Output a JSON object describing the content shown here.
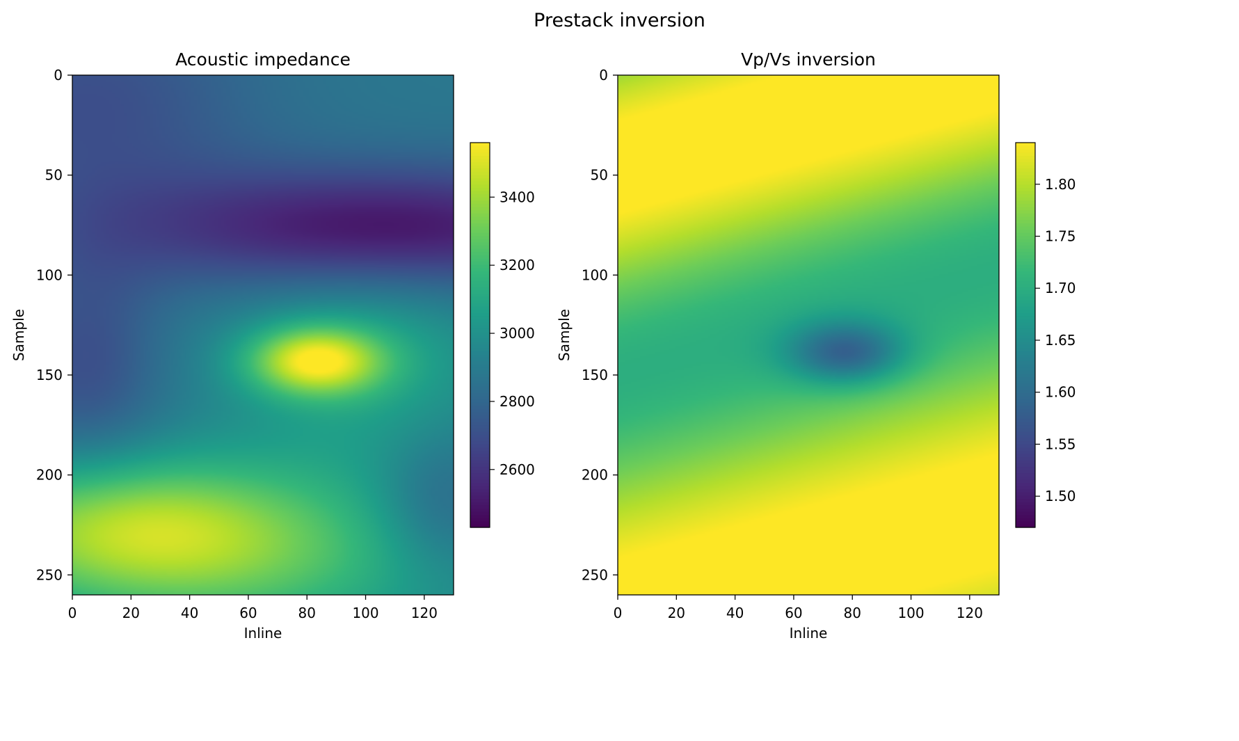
{
  "figure": {
    "title": "Prestack inversion"
  },
  "chart_data": [
    {
      "type": "heatmap",
      "title": "Acoustic impedance",
      "xlabel": "Inline",
      "ylabel": "Sample",
      "xlim": [
        0,
        130
      ],
      "ylim": [
        260,
        0
      ],
      "x_ticks": [
        0,
        20,
        40,
        60,
        80,
        100,
        120
      ],
      "y_ticks": [
        0,
        50,
        100,
        150,
        200,
        250
      ],
      "colormap": "viridis",
      "colorbar": {
        "range": [
          2430,
          3560
        ],
        "ticks": [
          2600,
          2800,
          3000,
          3200,
          3400
        ]
      },
      "field": {
        "base": 2880,
        "features": [
          {
            "kind": "gaussian",
            "x": 105,
            "y": 77,
            "sx": 60,
            "sy": 22,
            "amp": -430
          },
          {
            "kind": "gaussian",
            "x": 5,
            "y": 15,
            "sx": 40,
            "sy": 40,
            "amp": -180
          },
          {
            "kind": "gaussian",
            "x": 5,
            "y": 145,
            "sx": 18,
            "sy": 40,
            "amp": -180
          },
          {
            "kind": "gaussian",
            "x": 83,
            "y": 143,
            "sx": 16,
            "sy": 12,
            "amp": 560
          },
          {
            "kind": "gaussian",
            "x": 100,
            "y": 145,
            "sx": 35,
            "sy": 45,
            "amp": 200
          },
          {
            "kind": "gaussian",
            "x": 20,
            "y": 225,
            "sx": 45,
            "sy": 25,
            "amp": 460
          },
          {
            "kind": "gaussian",
            "x": 60,
            "y": 250,
            "sx": 60,
            "sy": 30,
            "amp": 250
          },
          {
            "kind": "gaussian",
            "x": 125,
            "y": 215,
            "sx": 15,
            "sy": 25,
            "amp": -150
          }
        ]
      },
      "value_range": [
        2430,
        3560
      ]
    },
    {
      "type": "heatmap",
      "title": "Vp/Vs inversion",
      "xlabel": "Inline",
      "ylabel": "Sample",
      "xlim": [
        0,
        130
      ],
      "ylim": [
        260,
        0
      ],
      "x_ticks": [
        0,
        20,
        40,
        60,
        80,
        100,
        120
      ],
      "y_ticks": [
        0,
        50,
        100,
        150,
        200,
        250
      ],
      "colormap": "viridis",
      "colorbar": {
        "range": [
          1.47,
          1.84
        ],
        "ticks": [
          1.5,
          1.55,
          1.6,
          1.65,
          1.7,
          1.75,
          1.8
        ]
      },
      "field": {
        "base": 1.6,
        "features": [
          {
            "kind": "band",
            "slope": -0.4,
            "center": 45,
            "width": 55,
            "amp": 0.26
          },
          {
            "kind": "band",
            "slope": -0.4,
            "center": 270,
            "width": 70,
            "amp": 0.26
          },
          {
            "kind": "gaussian",
            "x": 78,
            "y": 139,
            "sx": 14,
            "sy": 11,
            "amp": -0.13
          }
        ]
      },
      "value_range": [
        1.47,
        1.84
      ]
    }
  ]
}
